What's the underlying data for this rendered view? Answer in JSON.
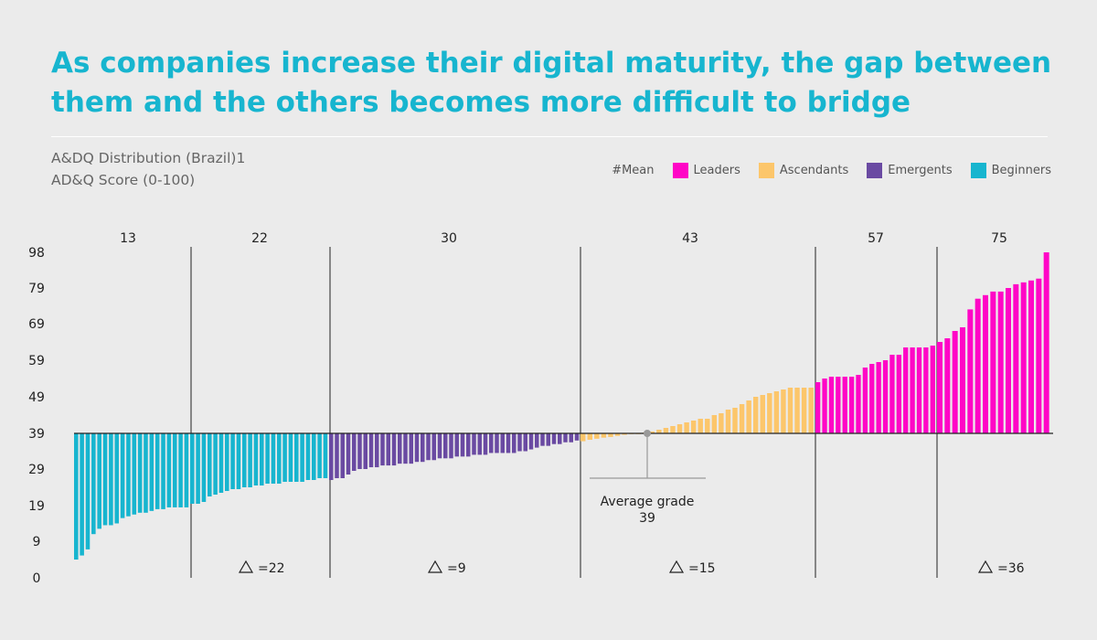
{
  "title": "As companies increase their digital maturity, the gap between them and the others becomes more difficult to bridge",
  "subtitle_line1": "A&DQ Distribution (Brazil)1",
  "subtitle_line2": "AD&Q Score (0-100)",
  "legend": {
    "mean_label": "#Mean",
    "items": [
      {
        "label": "Leaders",
        "color": "#ff06c6"
      },
      {
        "label": "Ascendants",
        "color": "#fcc66b"
      },
      {
        "label": "Emergents",
        "color": "#6a4aa2"
      },
      {
        "label": "Beginners",
        "color": "#17b5cf"
      }
    ]
  },
  "chart_data": {
    "type": "bar",
    "baseline": 39,
    "y_tick_labels": [
      "0",
      "9",
      "19",
      "29",
      "39",
      "49",
      "59",
      "69",
      "79",
      "98"
    ],
    "groups": [
      {
        "name": "Beginners",
        "color": "#17b5cf",
        "mean": "13",
        "values": [
          4.5,
          5.5,
          7,
          11,
          12.5,
          13.5,
          13.5,
          14,
          15.5,
          16,
          16.5,
          17,
          17,
          17.5,
          18,
          18,
          18.5,
          18.5,
          18.5,
          18.5
        ]
      },
      {
        "name": "Beginners",
        "color": "#17b5cf",
        "mean": "22",
        "delta": "=22",
        "values": [
          19.5,
          19.5,
          20,
          21.5,
          22,
          22.5,
          23,
          23.5,
          23.5,
          24,
          24,
          24.5,
          24.5,
          25,
          25,
          25,
          25.5,
          25.5,
          25.5,
          25.5,
          26,
          26,
          26.5,
          26.5
        ]
      },
      {
        "name": "Emergents",
        "color": "#6a4aa2",
        "mean": "30",
        "delta": "=9",
        "values": [
          26,
          26.5,
          26.5,
          27.5,
          28.5,
          29,
          29,
          29.5,
          29.5,
          30,
          30,
          30,
          30.5,
          30.5,
          30.5,
          31,
          31,
          31.5,
          31.5,
          32,
          32,
          32,
          32.5,
          32.5,
          32.5,
          33,
          33,
          33,
          33.5,
          33.5,
          33.5,
          33.5,
          33.5,
          34,
          34,
          34.5,
          35,
          35.5,
          35.5,
          36,
          36,
          36.5,
          36.5,
          37
        ]
      },
      {
        "name": "Ascendants",
        "color": "#fcc66b",
        "mean": "43",
        "delta": "=15",
        "values": [
          36.8,
          37.2,
          37.5,
          37.8,
          38,
          38.3,
          38.6,
          38.8,
          39,
          39.2,
          39.5,
          40,
          40.5,
          41,
          41.5,
          42,
          42.5,
          43,
          43,
          44,
          44.5,
          45.5,
          46,
          47,
          48,
          49,
          49.5,
          50,
          50.5,
          51,
          51.5,
          51.5,
          51.5,
          51.5
        ]
      },
      {
        "name": "Leaders",
        "color": "#ff06c6",
        "mean": "57",
        "values": [
          53,
          54,
          54.5,
          54.5,
          54.5,
          54.5,
          55,
          57,
          58,
          58.5,
          59,
          60.5,
          60.5,
          62.5,
          62.5,
          62.5,
          62.5,
          63
        ]
      },
      {
        "name": "Leaders",
        "color": "#ff06c6",
        "mean": "75",
        "delta": "=36",
        "values": [
          64,
          65,
          67,
          68,
          73,
          76,
          77,
          78,
          78,
          79,
          81,
          82,
          83,
          84,
          98
        ]
      }
    ],
    "average": {
      "label": "Average grade",
      "value": "39"
    }
  }
}
